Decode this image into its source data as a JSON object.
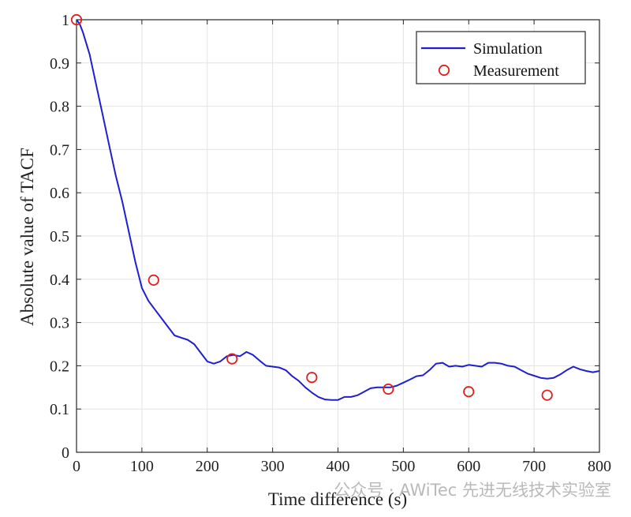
{
  "chart_data": {
    "type": "line",
    "title": "",
    "xlabel": "Time difference (s)",
    "ylabel": "Absolute value of TACF",
    "xlim": [
      0,
      800
    ],
    "ylim": [
      0,
      1
    ],
    "xticks": [
      0,
      100,
      200,
      300,
      400,
      500,
      600,
      700,
      800
    ],
    "yticks": [
      0,
      0.1,
      0.2,
      0.3,
      0.4,
      0.5,
      0.6,
      0.7,
      0.8,
      0.9,
      1
    ],
    "xtick_labels": [
      "0",
      "100",
      "200",
      "300",
      "400",
      "500",
      "600",
      "700",
      "800"
    ],
    "ytick_labels": [
      "0",
      "0.1",
      "0.2",
      "0.3",
      "0.4",
      "0.5",
      "0.6",
      "0.7",
      "0.8",
      "0.9",
      "1"
    ],
    "grid": true,
    "legend_position": "top-right",
    "series": [
      {
        "name": "Simulation",
        "style": "line",
        "color": "#1f1fd0",
        "x": [
          0,
          5,
          10,
          20,
          30,
          40,
          50,
          60,
          70,
          80,
          90,
          100,
          110,
          120,
          130,
          140,
          150,
          160,
          170,
          180,
          190,
          200,
          210,
          220,
          230,
          240,
          250,
          260,
          270,
          280,
          290,
          300,
          310,
          320,
          330,
          340,
          350,
          360,
          370,
          380,
          390,
          400,
          410,
          420,
          430,
          440,
          450,
          460,
          470,
          480,
          490,
          500,
          510,
          520,
          530,
          540,
          550,
          560,
          570,
          580,
          590,
          600,
          610,
          620,
          630,
          640,
          650,
          660,
          670,
          680,
          690,
          700,
          710,
          720,
          730,
          740,
          750,
          760,
          770,
          780,
          790,
          800
        ],
        "values": [
          1.0,
          0.99,
          0.97,
          0.92,
          0.85,
          0.78,
          0.71,
          0.64,
          0.58,
          0.51,
          0.44,
          0.38,
          0.35,
          0.33,
          0.31,
          0.29,
          0.27,
          0.265,
          0.26,
          0.25,
          0.23,
          0.21,
          0.205,
          0.21,
          0.222,
          0.225,
          0.222,
          0.232,
          0.225,
          0.212,
          0.2,
          0.198,
          0.196,
          0.19,
          0.176,
          0.165,
          0.15,
          0.138,
          0.128,
          0.122,
          0.121,
          0.121,
          0.128,
          0.128,
          0.132,
          0.14,
          0.148,
          0.15,
          0.15,
          0.15,
          0.154,
          0.161,
          0.168,
          0.176,
          0.178,
          0.19,
          0.205,
          0.207,
          0.198,
          0.2,
          0.198,
          0.202,
          0.2,
          0.198,
          0.207,
          0.207,
          0.205,
          0.2,
          0.198,
          0.19,
          0.182,
          0.177,
          0.172,
          0.17,
          0.172,
          0.18,
          0.19,
          0.198,
          0.192,
          0.188,
          0.185,
          0.188
        ]
      },
      {
        "name": "Measurement",
        "style": "marker",
        "marker": "circle",
        "color": "#e0201c",
        "x": [
          0,
          118,
          238,
          360,
          477,
          600,
          720
        ],
        "values": [
          1.0,
          0.398,
          0.216,
          0.173,
          0.146,
          0.14,
          0.132
        ]
      }
    ],
    "watermark": "公众号 · AWiTec 先进无线技术实验室"
  }
}
